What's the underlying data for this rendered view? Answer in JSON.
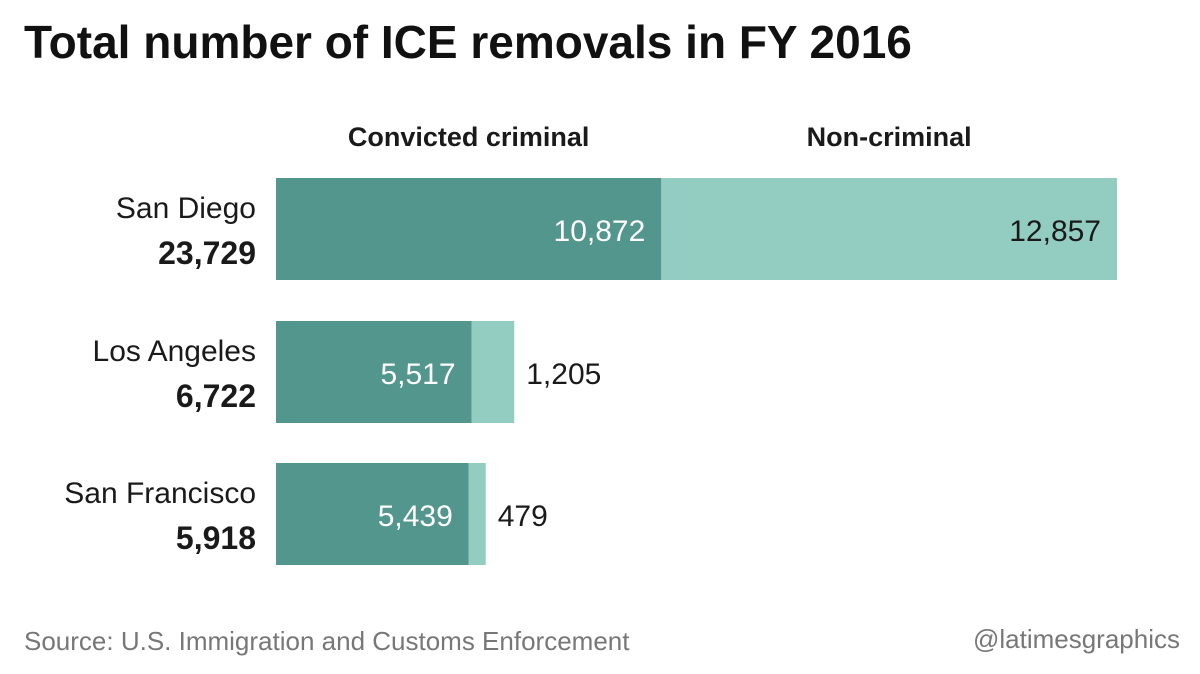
{
  "chart_data": {
    "type": "bar",
    "orientation": "horizontal",
    "stacked": true,
    "title": "Total number of ICE removals in FY 2016",
    "categories": [
      "San Diego",
      "Los Angeles",
      "San Francisco"
    ],
    "totals": [
      "23,729",
      "6,722",
      "5,918"
    ],
    "series": [
      {
        "name": "Convicted criminal",
        "values": [
          10872,
          5517,
          5439
        ],
        "labels": [
          "10,872",
          "5,517",
          "5,439"
        ],
        "color": "#52968d"
      },
      {
        "name": "Non-criminal",
        "values": [
          12857,
          1205,
          479
        ],
        "labels": [
          "12,857",
          "1,205",
          "479"
        ],
        "color": "#93cdc2"
      }
    ],
    "legend_position": "top",
    "grid": false,
    "xlim": [
      0,
      23729
    ]
  },
  "footer": {
    "source": "Source: U.S. Immigration and Customs Enforcement",
    "credit": "@latimesgraphics"
  }
}
